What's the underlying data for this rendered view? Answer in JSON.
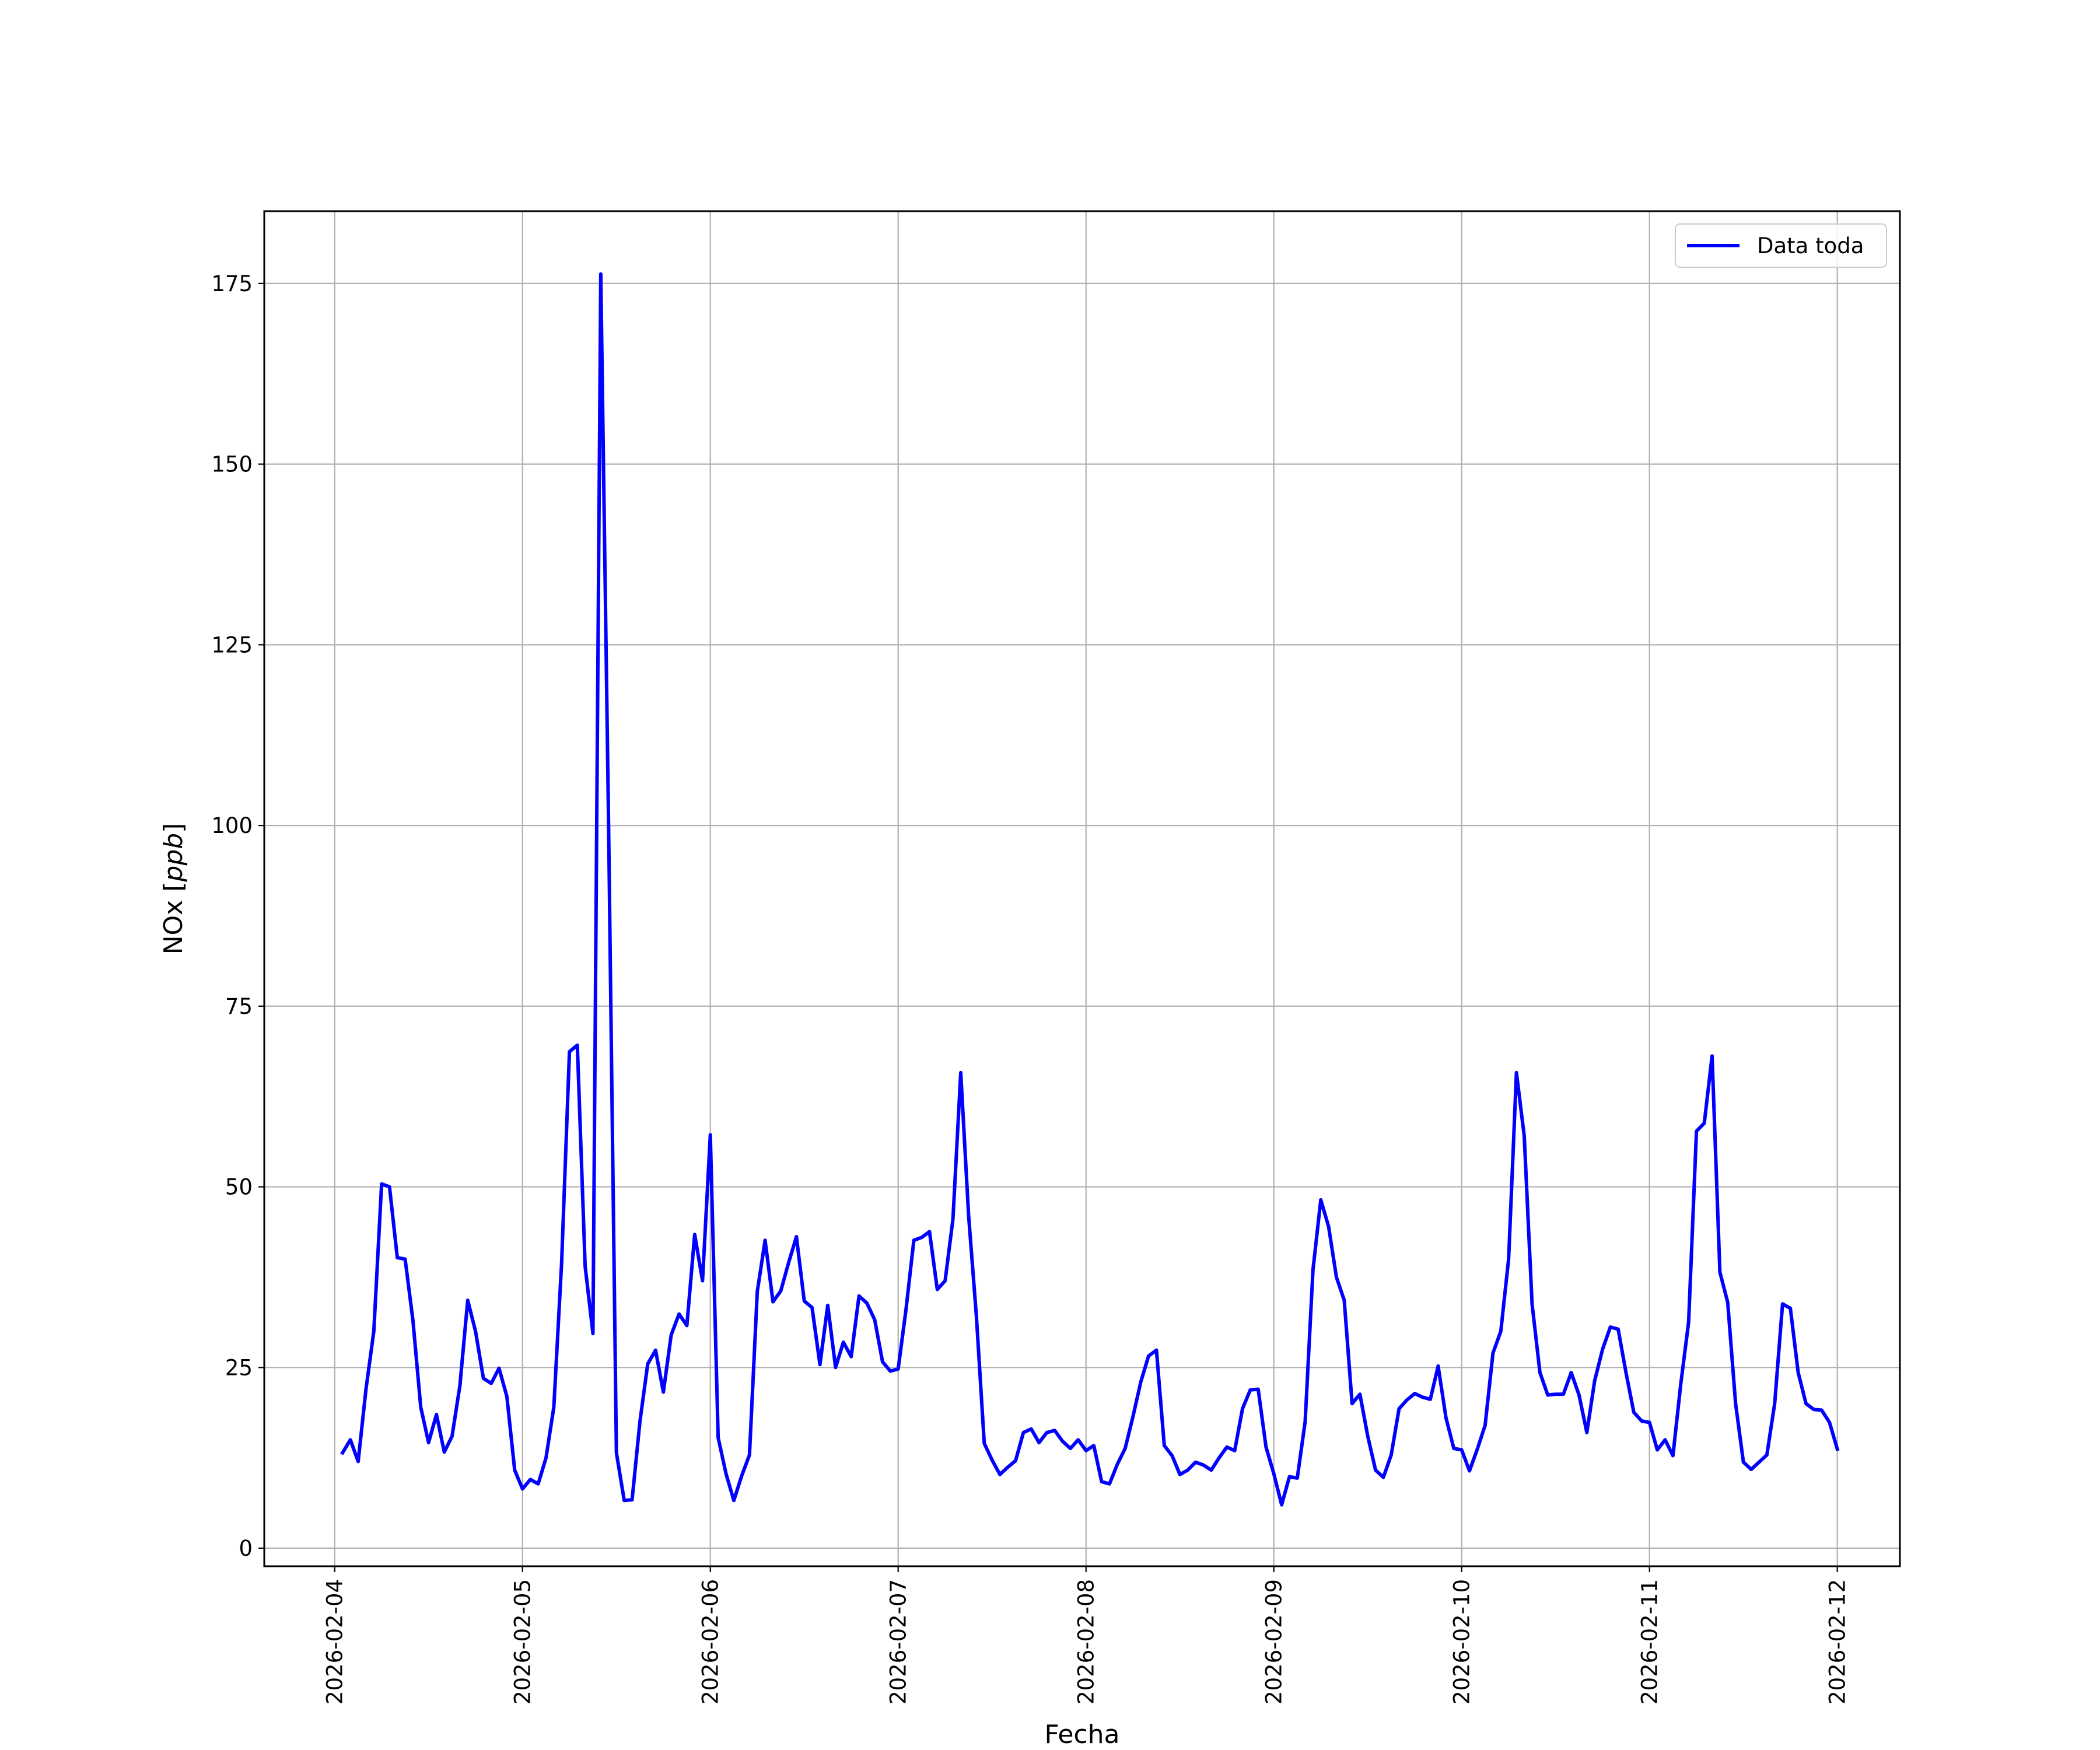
{
  "colors": {
    "series": "#0000ff",
    "grid": "#b0b0b0",
    "axes": "#000000",
    "background": "#ffffff"
  },
  "chart_data": {
    "type": "line",
    "title": "",
    "xlabel": "Fecha",
    "ylabel": "NOx [ppb]",
    "ylabel_main": "NOx [",
    "ylabel_unit": "ppb",
    "ylabel_close": "]",
    "xlim": [
      "2026-02-03 15:00",
      "2026-02-12 08:00"
    ],
    "ylim": [
      -2.5,
      185
    ],
    "grid": true,
    "legend_position": "top-right",
    "x_ticks": [
      "2026-02-04",
      "2026-02-05",
      "2026-02-06",
      "2026-02-07",
      "2026-02-08",
      "2026-02-09",
      "2026-02-10",
      "2026-02-11",
      "2026-02-12"
    ],
    "y_ticks": [
      0,
      25,
      50,
      75,
      100,
      125,
      150,
      175
    ],
    "series": [
      {
        "name": "Data toda",
        "color": "#0000ff",
        "x": [
          "2026-02-04 01:00",
          "2026-02-04 02:00",
          "2026-02-04 03:00",
          "2026-02-04 04:00",
          "2026-02-04 05:00",
          "2026-02-04 06:00",
          "2026-02-04 07:00",
          "2026-02-04 08:00",
          "2026-02-04 09:00",
          "2026-02-04 10:00",
          "2026-02-04 11:00",
          "2026-02-04 12:00",
          "2026-02-04 13:00",
          "2026-02-04 14:00",
          "2026-02-04 15:00",
          "2026-02-04 16:00",
          "2026-02-04 17:00",
          "2026-02-04 18:00",
          "2026-02-04 19:00",
          "2026-02-04 20:00",
          "2026-02-04 21:00",
          "2026-02-04 22:00",
          "2026-02-04 23:00",
          "2026-02-05 00:00",
          "2026-02-05 01:00",
          "2026-02-05 02:00",
          "2026-02-05 03:00",
          "2026-02-05 04:00",
          "2026-02-05 05:00",
          "2026-02-05 06:00",
          "2026-02-05 07:00",
          "2026-02-05 08:00",
          "2026-02-05 09:00",
          "2026-02-05 10:00",
          "2026-02-05 11:00",
          "2026-02-05 12:00",
          "2026-02-05 13:00",
          "2026-02-05 14:00",
          "2026-02-05 15:00",
          "2026-02-05 16:00",
          "2026-02-05 17:00",
          "2026-02-05 18:00",
          "2026-02-05 19:00",
          "2026-02-05 20:00",
          "2026-02-05 21:00",
          "2026-02-05 22:00",
          "2026-02-05 23:00",
          "2026-02-06 00:00",
          "2026-02-06 01:00",
          "2026-02-06 02:00",
          "2026-02-06 03:00",
          "2026-02-06 04:00",
          "2026-02-06 05:00",
          "2026-02-06 06:00",
          "2026-02-06 07:00",
          "2026-02-06 08:00",
          "2026-02-06 09:00",
          "2026-02-06 10:00",
          "2026-02-06 11:00",
          "2026-02-06 12:00",
          "2026-02-06 13:00",
          "2026-02-06 14:00",
          "2026-02-06 15:00",
          "2026-02-06 16:00",
          "2026-02-06 17:00",
          "2026-02-06 18:00",
          "2026-02-06 19:00",
          "2026-02-06 20:00",
          "2026-02-06 21:00",
          "2026-02-06 22:00",
          "2026-02-06 23:00",
          "2026-02-07 00:00",
          "2026-02-07 01:00",
          "2026-02-07 02:00",
          "2026-02-07 03:00",
          "2026-02-07 04:00",
          "2026-02-07 05:00",
          "2026-02-07 06:00",
          "2026-02-07 07:00",
          "2026-02-07 08:00",
          "2026-02-07 09:00",
          "2026-02-07 10:00",
          "2026-02-07 11:00",
          "2026-02-07 12:00",
          "2026-02-07 13:00",
          "2026-02-07 14:00",
          "2026-02-07 15:00",
          "2026-02-07 16:00",
          "2026-02-07 17:00",
          "2026-02-07 18:00",
          "2026-02-07 19:00",
          "2026-02-07 20:00",
          "2026-02-07 21:00",
          "2026-02-07 22:00",
          "2026-02-07 23:00",
          "2026-02-08 00:00",
          "2026-02-08 01:00",
          "2026-02-08 02:00",
          "2026-02-08 03:00",
          "2026-02-08 04:00",
          "2026-02-08 05:00",
          "2026-02-08 06:00",
          "2026-02-08 07:00",
          "2026-02-08 08:00",
          "2026-02-08 09:00",
          "2026-02-08 10:00",
          "2026-02-08 11:00",
          "2026-02-08 12:00",
          "2026-02-08 13:00",
          "2026-02-08 14:00",
          "2026-02-08 15:00",
          "2026-02-08 16:00",
          "2026-02-08 17:00",
          "2026-02-08 18:00",
          "2026-02-08 19:00",
          "2026-02-08 20:00",
          "2026-02-08 21:00",
          "2026-02-08 22:00",
          "2026-02-08 23:00",
          "2026-02-09 00:00",
          "2026-02-09 01:00",
          "2026-02-09 02:00",
          "2026-02-09 03:00",
          "2026-02-09 04:00",
          "2026-02-09 05:00",
          "2026-02-09 06:00",
          "2026-02-09 07:00",
          "2026-02-09 08:00",
          "2026-02-09 09:00",
          "2026-02-09 10:00",
          "2026-02-09 11:00",
          "2026-02-09 12:00",
          "2026-02-09 13:00",
          "2026-02-09 14:00",
          "2026-02-09 15:00",
          "2026-02-09 16:00",
          "2026-02-09 17:00",
          "2026-02-09 18:00",
          "2026-02-09 19:00",
          "2026-02-09 20:00",
          "2026-02-09 21:00",
          "2026-02-09 22:00",
          "2026-02-09 23:00",
          "2026-02-10 00:00",
          "2026-02-10 01:00",
          "2026-02-10 02:00",
          "2026-02-10 03:00",
          "2026-02-10 04:00",
          "2026-02-10 05:00",
          "2026-02-10 06:00",
          "2026-02-10 07:00",
          "2026-02-10 08:00",
          "2026-02-10 09:00",
          "2026-02-10 10:00",
          "2026-02-10 11:00",
          "2026-02-10 12:00",
          "2026-02-10 13:00",
          "2026-02-10 14:00",
          "2026-02-10 15:00",
          "2026-02-10 16:00",
          "2026-02-10 17:00",
          "2026-02-10 18:00",
          "2026-02-10 19:00",
          "2026-02-10 20:00",
          "2026-02-10 21:00",
          "2026-02-10 22:00",
          "2026-02-10 23:00",
          "2026-02-11 00:00",
          "2026-02-11 01:00",
          "2026-02-11 02:00",
          "2026-02-11 03:00",
          "2026-02-11 04:00",
          "2026-02-11 05:00",
          "2026-02-11 06:00",
          "2026-02-11 07:00",
          "2026-02-11 08:00",
          "2026-02-11 09:00",
          "2026-02-11 10:00",
          "2026-02-11 11:00",
          "2026-02-11 12:00",
          "2026-02-11 13:00",
          "2026-02-11 14:00",
          "2026-02-11 15:00",
          "2026-02-11 16:00",
          "2026-02-11 17:00",
          "2026-02-11 18:00",
          "2026-02-11 19:00",
          "2026-02-11 20:00",
          "2026-02-11 21:00",
          "2026-02-11 22:00",
          "2026-02-11 23:00",
          "2026-02-12 00:00"
        ],
        "y": [
          13.2,
          15.0,
          12.0,
          22.0,
          30.0,
          50.4,
          50.0,
          40.2,
          40.0,
          31.5,
          19.5,
          14.6,
          18.5,
          13.3,
          15.5,
          22.5,
          34.3,
          30.0,
          23.5,
          22.8,
          24.9,
          21.0,
          10.8,
          8.2,
          9.5,
          8.9,
          12.5,
          19.5,
          39.5,
          68.7,
          69.6,
          39.0,
          29.7,
          176.3,
          100.0,
          13.2,
          6.6,
          6.7,
          17.5,
          25.5,
          27.4,
          21.6,
          29.5,
          32.4,
          30.8,
          43.4,
          37.0,
          57.2,
          15.3,
          10.3,
          6.6,
          10.0,
          12.9,
          35.5,
          42.6,
          34.1,
          35.6,
          39.5,
          43.1,
          34.2,
          33.3,
          25.4,
          33.6,
          25.0,
          28.5,
          26.5,
          34.9,
          33.9,
          31.6,
          25.8,
          24.5,
          24.8,
          33.0,
          42.6,
          43.0,
          43.8,
          35.8,
          37.0,
          45.5,
          65.8,
          46.0,
          32.0,
          14.5,
          12.2,
          10.2,
          11.2,
          12.1,
          16.0,
          16.5,
          14.6,
          16.0,
          16.3,
          14.8,
          13.8,
          15.0,
          13.5,
          14.2,
          9.2,
          8.9,
          11.6,
          13.8,
          18.2,
          23.0,
          26.6,
          27.4,
          14.2,
          12.8,
          10.2,
          10.8,
          11.9,
          11.5,
          10.8,
          12.5,
          14.0,
          13.5,
          19.3,
          21.9,
          22.0,
          14.0,
          10.3,
          6.0,
          9.9,
          9.7,
          17.5,
          38.5,
          48.2,
          44.5,
          37.5,
          34.3,
          20.0,
          21.3,
          15.5,
          10.8,
          9.8,
          12.9,
          19.3,
          20.5,
          21.4,
          20.9,
          20.6,
          25.2,
          18.0,
          13.8,
          13.6,
          10.7,
          13.7,
          17.0,
          27.0,
          30.0,
          40.0,
          65.8,
          57.0,
          33.8,
          24.3,
          21.2,
          21.3,
          21.3,
          24.3,
          21.2,
          16.0,
          23.2,
          27.5,
          30.6,
          30.3,
          24.3,
          18.8,
          17.6,
          17.4,
          13.6,
          15.0,
          12.8,
          22.7,
          31.3,
          57.7,
          58.8,
          68.1,
          38.2,
          34.0,
          20.0,
          11.9,
          10.9,
          11.9,
          12.9,
          20.0,
          33.8,
          33.2,
          24.3,
          20.0,
          19.2,
          19.1,
          17.4,
          13.7
        ]
      }
    ]
  }
}
